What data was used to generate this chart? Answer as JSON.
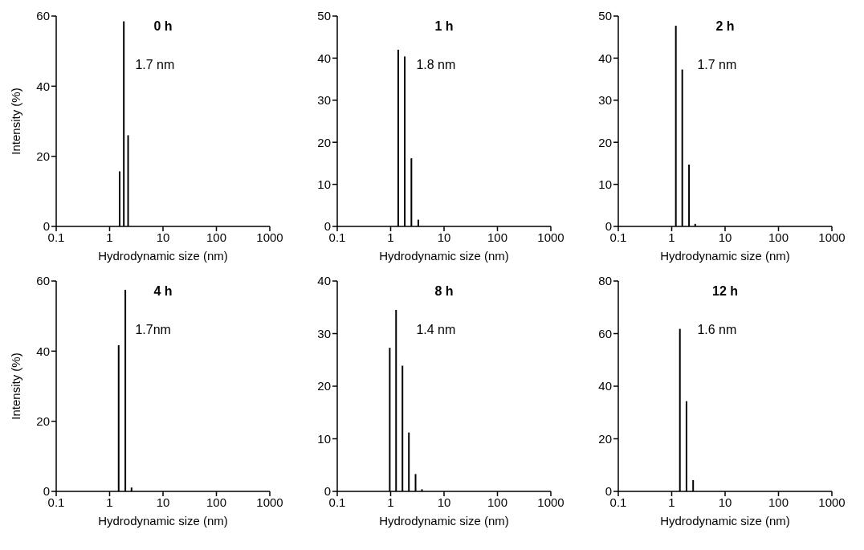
{
  "chart_data": [
    {
      "type": "bar",
      "title": "0 h",
      "xlabel": "Hydrodynamic size (nm)",
      "ylabel": "Intensity (%)",
      "x": [
        1.52,
        1.82,
        2.19
      ],
      "values": [
        15.7,
        58.5,
        26.0
      ],
      "color": "#000000",
      "log": "x",
      "xlim": [
        0.1,
        1000
      ],
      "xticks": [
        0.1,
        1,
        10,
        100,
        1000
      ],
      "ylim": [
        0,
        60
      ],
      "yticks": [
        0,
        20,
        40,
        60
      ],
      "annotations": [
        "1.7 nm"
      ]
    },
    {
      "type": "bar",
      "title": "1 h",
      "xlabel": "Hydrodynamic size (nm)",
      "x": [
        1.39,
        1.84,
        2.45,
        3.3
      ],
      "values": [
        42.0,
        40.4,
        16.2,
        1.6
      ],
      "color": "#000000",
      "log": "x",
      "xlim": [
        0.1,
        1000
      ],
      "xticks": [
        0.1,
        1,
        10,
        100,
        1000
      ],
      "ylim": [
        0,
        50
      ],
      "yticks": [
        0,
        10,
        20,
        30,
        40,
        50
      ],
      "annotations": [
        "1.8 nm"
      ]
    },
    {
      "type": "bar",
      "title": "2 h",
      "xlabel": "Hydrodynamic size (nm)",
      "x": [
        1.19,
        1.57,
        2.1,
        2.74
      ],
      "values": [
        47.7,
        37.3,
        14.7,
        0.6
      ],
      "color": "#000000",
      "log": "x",
      "xlim": [
        0.1,
        1000
      ],
      "xticks": [
        0.1,
        1,
        10,
        100,
        1000
      ],
      "ylim": [
        0,
        50
      ],
      "yticks": [
        0,
        10,
        20,
        30,
        40,
        50
      ],
      "annotations": [
        "1.7 nm"
      ]
    },
    {
      "type": "bar",
      "title": "4 h",
      "xlabel": "Hydrodynamic size (nm)",
      "ylabel": "Intensity (%)",
      "x": [
        1.47,
        1.96,
        2.56
      ],
      "values": [
        41.7,
        57.5,
        1.1
      ],
      "color": "#000000",
      "log": "x",
      "xlim": [
        0.1,
        1000
      ],
      "xticks": [
        0.1,
        1,
        10,
        100,
        1000
      ],
      "ylim": [
        0,
        60
      ],
      "yticks": [
        0,
        20,
        40,
        60
      ],
      "annotations": [
        "1.7nm"
      ]
    },
    {
      "type": "bar",
      "title": "8 h",
      "xlabel": "Hydrodynamic size (nm)",
      "x": [
        0.96,
        1.26,
        1.66,
        2.19,
        2.92,
        3.85
      ],
      "values": [
        27.3,
        34.5,
        23.9,
        11.2,
        3.3,
        0.4
      ],
      "color": "#000000",
      "log": "x",
      "xlim": [
        0.1,
        1000
      ],
      "xticks": [
        0.1,
        1,
        10,
        100,
        1000
      ],
      "ylim": [
        0,
        40
      ],
      "yticks": [
        0,
        10,
        20,
        30,
        40
      ],
      "annotations": [
        "1.4 nm"
      ]
    },
    {
      "type": "bar",
      "title": "12 h",
      "xlabel": "Hydrodynamic size (nm)",
      "x": [
        1.43,
        1.9,
        2.53
      ],
      "values": [
        61.8,
        34.3,
        4.3
      ],
      "color": "#000000",
      "log": "x",
      "xlim": [
        0.1,
        1000
      ],
      "xticks": [
        0.1,
        1,
        10,
        100,
        1000
      ],
      "ylim": [
        0,
        80
      ],
      "yticks": [
        0,
        20,
        40,
        60,
        80
      ],
      "annotations": [
        "1.6 nm"
      ]
    }
  ]
}
